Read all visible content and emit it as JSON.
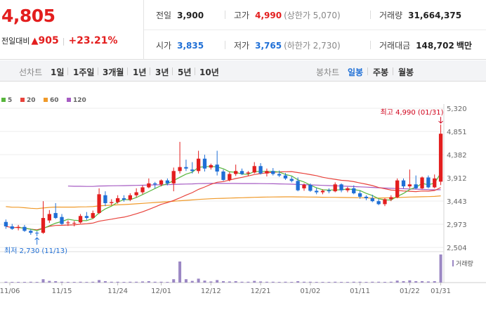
{
  "header": {
    "current_price": "4,805",
    "change_label": "전일대비",
    "change_arrow": "▲",
    "change_amount": "905",
    "change_pct": "+23.21%"
  },
  "stats": {
    "prev_close": {
      "label": "전일",
      "value": "3,900"
    },
    "high": {
      "label": "고가",
      "value": "4,990",
      "sub": "(상한가 5,070)"
    },
    "volume": {
      "label": "거래량",
      "value": "31,664,375"
    },
    "open": {
      "label": "시가",
      "value": "3,835"
    },
    "low": {
      "label": "저가",
      "value": "3,765",
      "sub": "(하한가 2,730)"
    },
    "amount": {
      "label": "거래대금",
      "value": "148,702",
      "unit": "백만"
    }
  },
  "toolbar": {
    "line_chart_title": "선차트",
    "periods": [
      "1일",
      "1주일",
      "3개월",
      "1년",
      "3년",
      "5년",
      "10년"
    ],
    "candle_title": "봉차트",
    "candle_periods": [
      "일봉",
      "주봉",
      "월봉"
    ],
    "active_candle": "일봉"
  },
  "colors": {
    "up": "#e31e1e",
    "down": "#1f6fd6",
    "ma5": "#58b63d",
    "ma20": "#e8433c",
    "ma60": "#f09a2a",
    "ma120": "#a65cc3",
    "volume": "#9b87c4"
  },
  "chart_data": {
    "type": "candlestick",
    "legend": [
      {
        "name": "5",
        "color": "#58b63d"
      },
      {
        "name": "20",
        "color": "#e8433c"
      },
      {
        "name": "60",
        "color": "#f09a2a"
      },
      {
        "name": "120",
        "color": "#a65cc3"
      }
    ],
    "y_ticks": [
      5320,
      4851,
      4382,
      3912,
      3443,
      2973,
      2504
    ],
    "ylim": [
      2504,
      5320
    ],
    "x_labels": [
      "11/06",
      "11/15",
      "11/24",
      "12/01",
      "12/12",
      "12/21",
      "01/02",
      "01/11",
      "01/22",
      "01/31"
    ],
    "max_annotation": "최고 4,990 (01/31)",
    "min_annotation": "최저 2,730 (11/13)",
    "volume_label": "거래량",
    "candles": [
      {
        "o": 3020,
        "h": 3070,
        "l": 2880,
        "c": 2930
      },
      {
        "o": 2930,
        "h": 2980,
        "l": 2860,
        "c": 2880
      },
      {
        "o": 2900,
        "h": 2960,
        "l": 2850,
        "c": 2920
      },
      {
        "o": 2920,
        "h": 2960,
        "l": 2820,
        "c": 2840
      },
      {
        "o": 2840,
        "h": 2870,
        "l": 2760,
        "c": 2800
      },
      {
        "o": 2800,
        "h": 2830,
        "l": 2730,
        "c": 2790
      },
      {
        "o": 2800,
        "h": 3440,
        "l": 2780,
        "c": 3100
      },
      {
        "o": 3050,
        "h": 3260,
        "l": 3000,
        "c": 3180
      },
      {
        "o": 3200,
        "h": 3400,
        "l": 3080,
        "c": 3100
      },
      {
        "o": 3120,
        "h": 3180,
        "l": 2960,
        "c": 2980
      },
      {
        "o": 3000,
        "h": 3050,
        "l": 2940,
        "c": 3010
      },
      {
        "o": 2990,
        "h": 3040,
        "l": 2930,
        "c": 3000
      },
      {
        "o": 3010,
        "h": 3180,
        "l": 2990,
        "c": 3140
      },
      {
        "o": 3140,
        "h": 3220,
        "l": 3060,
        "c": 3100
      },
      {
        "o": 3100,
        "h": 3250,
        "l": 3080,
        "c": 3200
      },
      {
        "o": 3200,
        "h": 3700,
        "l": 3180,
        "c": 3580
      },
      {
        "o": 3560,
        "h": 3640,
        "l": 3340,
        "c": 3400
      },
      {
        "o": 3400,
        "h": 3480,
        "l": 3360,
        "c": 3420
      },
      {
        "o": 3420,
        "h": 3560,
        "l": 3390,
        "c": 3500
      },
      {
        "o": 3500,
        "h": 3560,
        "l": 3430,
        "c": 3470
      },
      {
        "o": 3470,
        "h": 3600,
        "l": 3440,
        "c": 3560
      },
      {
        "o": 3560,
        "h": 3700,
        "l": 3520,
        "c": 3620
      },
      {
        "o": 3620,
        "h": 3760,
        "l": 3580,
        "c": 3720
      },
      {
        "o": 3720,
        "h": 3900,
        "l": 3700,
        "c": 3800
      },
      {
        "o": 3800,
        "h": 3830,
        "l": 3700,
        "c": 3780
      },
      {
        "o": 3780,
        "h": 3880,
        "l": 3740,
        "c": 3860
      },
      {
        "o": 3860,
        "h": 3900,
        "l": 3760,
        "c": 3800
      },
      {
        "o": 3800,
        "h": 4120,
        "l": 3640,
        "c": 4050
      },
      {
        "o": 4050,
        "h": 4640,
        "l": 4000,
        "c": 4130
      },
      {
        "o": 4130,
        "h": 4280,
        "l": 4050,
        "c": 4100
      },
      {
        "o": 4080,
        "h": 4230,
        "l": 4000,
        "c": 4050
      },
      {
        "o": 4050,
        "h": 4460,
        "l": 4000,
        "c": 4300
      },
      {
        "o": 4300,
        "h": 4380,
        "l": 4040,
        "c": 4100
      },
      {
        "o": 4120,
        "h": 4200,
        "l": 4080,
        "c": 4170
      },
      {
        "o": 4180,
        "h": 4460,
        "l": 3960,
        "c": 4040
      },
      {
        "o": 4040,
        "h": 4080,
        "l": 3850,
        "c": 3870
      },
      {
        "o": 3870,
        "h": 4030,
        "l": 3840,
        "c": 3990
      },
      {
        "o": 3990,
        "h": 4180,
        "l": 3950,
        "c": 4050
      },
      {
        "o": 4050,
        "h": 4100,
        "l": 3970,
        "c": 3990
      },
      {
        "o": 4000,
        "h": 4050,
        "l": 3950,
        "c": 4020
      },
      {
        "o": 4020,
        "h": 4230,
        "l": 4000,
        "c": 4150
      },
      {
        "o": 4150,
        "h": 4210,
        "l": 3980,
        "c": 4000
      },
      {
        "o": 4000,
        "h": 4100,
        "l": 3940,
        "c": 4050
      },
      {
        "o": 4050,
        "h": 4110,
        "l": 3960,
        "c": 3990
      },
      {
        "o": 3990,
        "h": 4060,
        "l": 3930,
        "c": 3960
      },
      {
        "o": 3960,
        "h": 4010,
        "l": 3870,
        "c": 3900
      },
      {
        "o": 3890,
        "h": 3940,
        "l": 3820,
        "c": 3850
      },
      {
        "o": 3850,
        "h": 3920,
        "l": 3640,
        "c": 3660
      },
      {
        "o": 3700,
        "h": 3800,
        "l": 3650,
        "c": 3770
      },
      {
        "o": 3770,
        "h": 3800,
        "l": 3630,
        "c": 3650
      },
      {
        "o": 3650,
        "h": 3710,
        "l": 3580,
        "c": 3620
      },
      {
        "o": 3620,
        "h": 3680,
        "l": 3580,
        "c": 3650
      },
      {
        "o": 3660,
        "h": 3700,
        "l": 3600,
        "c": 3640
      },
      {
        "o": 3640,
        "h": 3820,
        "l": 3620,
        "c": 3780
      },
      {
        "o": 3780,
        "h": 3800,
        "l": 3620,
        "c": 3660
      },
      {
        "o": 3660,
        "h": 3730,
        "l": 3620,
        "c": 3700
      },
      {
        "o": 3700,
        "h": 3760,
        "l": 3580,
        "c": 3600
      },
      {
        "o": 3600,
        "h": 3650,
        "l": 3490,
        "c": 3530
      },
      {
        "o": 3530,
        "h": 3560,
        "l": 3460,
        "c": 3500
      },
      {
        "o": 3500,
        "h": 3570,
        "l": 3420,
        "c": 3440
      },
      {
        "o": 3440,
        "h": 3480,
        "l": 3360,
        "c": 3380
      },
      {
        "o": 3380,
        "h": 3500,
        "l": 3340,
        "c": 3480
      },
      {
        "o": 3480,
        "h": 3560,
        "l": 3440,
        "c": 3520
      },
      {
        "o": 3520,
        "h": 3900,
        "l": 3500,
        "c": 3860
      },
      {
        "o": 3860,
        "h": 3900,
        "l": 3700,
        "c": 3740
      },
      {
        "o": 3740,
        "h": 4080,
        "l": 3700,
        "c": 3780
      },
      {
        "o": 3780,
        "h": 3960,
        "l": 3680,
        "c": 3700
      },
      {
        "o": 3700,
        "h": 3940,
        "l": 3680,
        "c": 3920
      },
      {
        "o": 3920,
        "h": 3960,
        "l": 3700,
        "c": 3720
      },
      {
        "o": 3720,
        "h": 3980,
        "l": 3700,
        "c": 3900
      },
      {
        "o": 3835,
        "h": 4990,
        "l": 3765,
        "c": 4805
      }
    ],
    "volumes": [
      0.03,
      0.02,
      0.02,
      0.02,
      0.03,
      0.02,
      0.12,
      0.06,
      0.05,
      0.03,
      0.02,
      0.02,
      0.03,
      0.02,
      0.03,
      0.09,
      0.05,
      0.03,
      0.03,
      0.02,
      0.03,
      0.03,
      0.04,
      0.05,
      0.03,
      0.03,
      0.02,
      0.12,
      0.75,
      0.12,
      0.06,
      0.14,
      0.07,
      0.04,
      0.09,
      0.05,
      0.04,
      0.05,
      0.03,
      0.03,
      0.06,
      0.04,
      0.03,
      0.03,
      0.02,
      0.03,
      0.02,
      0.05,
      0.03,
      0.03,
      0.02,
      0.02,
      0.02,
      0.03,
      0.02,
      0.02,
      0.03,
      0.03,
      0.02,
      0.03,
      0.03,
      0.02,
      0.03,
      0.07,
      0.05,
      0.08,
      0.05,
      0.05,
      0.04,
      0.05,
      1.0
    ]
  }
}
